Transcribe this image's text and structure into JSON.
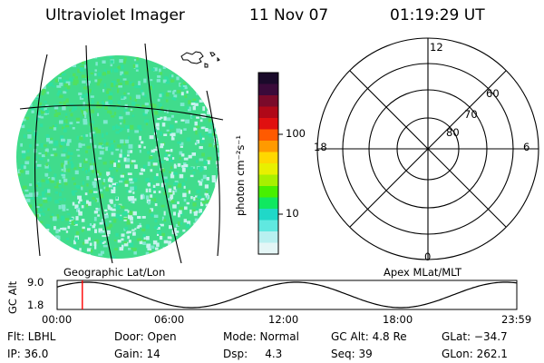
{
  "header": {
    "instrument": "Ultraviolet Imager",
    "date": "11 Nov 07",
    "time": "01:19:29 UT"
  },
  "colorbar": {
    "unit_label": "photon cm⁻²s⁻¹",
    "ticks": [
      "100",
      "10"
    ],
    "colors": [
      "#1a0a2a",
      "#3a0a3a",
      "#7a0a2a",
      "#b00818",
      "#e01010",
      "#ff5a00",
      "#ff9a00",
      "#ffd800",
      "#e8f000",
      "#a8f000",
      "#48f000",
      "#10e860",
      "#20d8c8",
      "#60e8e0",
      "#b8f0f0",
      "#e4f6f6"
    ]
  },
  "geo_map": {
    "caption": "Geographic Lat/Lon",
    "dominant_colors": [
      "#30e0a0",
      "#50e060",
      "#80e8d0"
    ]
  },
  "polar_plot": {
    "caption": "Apex MLat/MLT",
    "mlt_labels": {
      "top": "12",
      "left": "18",
      "right": "6",
      "bottom": "0"
    },
    "mlat_labels": [
      "60",
      "70",
      "80"
    ]
  },
  "altitude_plot": {
    "ylabel": "GC Alt",
    "yticks": [
      "9.0",
      "1.8"
    ],
    "xticks": [
      "00:00",
      "06:00",
      "12:00",
      "18:00",
      "23:59"
    ],
    "current_time_marker": "01:19",
    "marker_color": "#ff0000"
  },
  "status": {
    "filter": "Flt: LBHL",
    "door": "Door: Open",
    "mode": "Mode: Normal",
    "gc_alt": "GC Alt: 4.8 Re",
    "glat": "GLat: −34.7",
    "ip": "IP: 36.0",
    "gain": "Gain: 14",
    "dsp": "Dsp:     4.3",
    "seq": "Seq: 39",
    "glon": "GLon: 262.1"
  }
}
